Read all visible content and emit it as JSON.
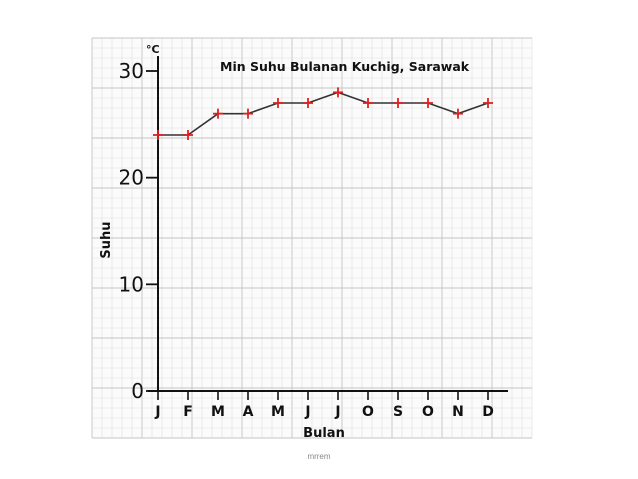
{
  "colors": {
    "paper": "#fbfbfb",
    "grid_minor": "#dddddd",
    "grid_major": "#c4c4c4",
    "axis": "#111111",
    "line": "#333333",
    "marker": "#e02020"
  },
  "caption": "mrrem",
  "chart_data": {
    "type": "line",
    "title": "Min Suhu Bulanan Kuchig, Sarawak",
    "xlabel": "Bulan",
    "ylabel": "Suhu",
    "y_unit": "°C",
    "categories": [
      "J",
      "F",
      "M",
      "A",
      "M",
      "J",
      "J",
      "O",
      "S",
      "O",
      "N",
      "D"
    ],
    "values": [
      24,
      24,
      26,
      26,
      27,
      27,
      28,
      27,
      27,
      27,
      26,
      27
    ],
    "ylim": [
      0,
      30
    ],
    "yticks": [
      "0",
      "10",
      "20",
      "30"
    ],
    "marker": "plus",
    "grid": true,
    "legend": "none"
  }
}
